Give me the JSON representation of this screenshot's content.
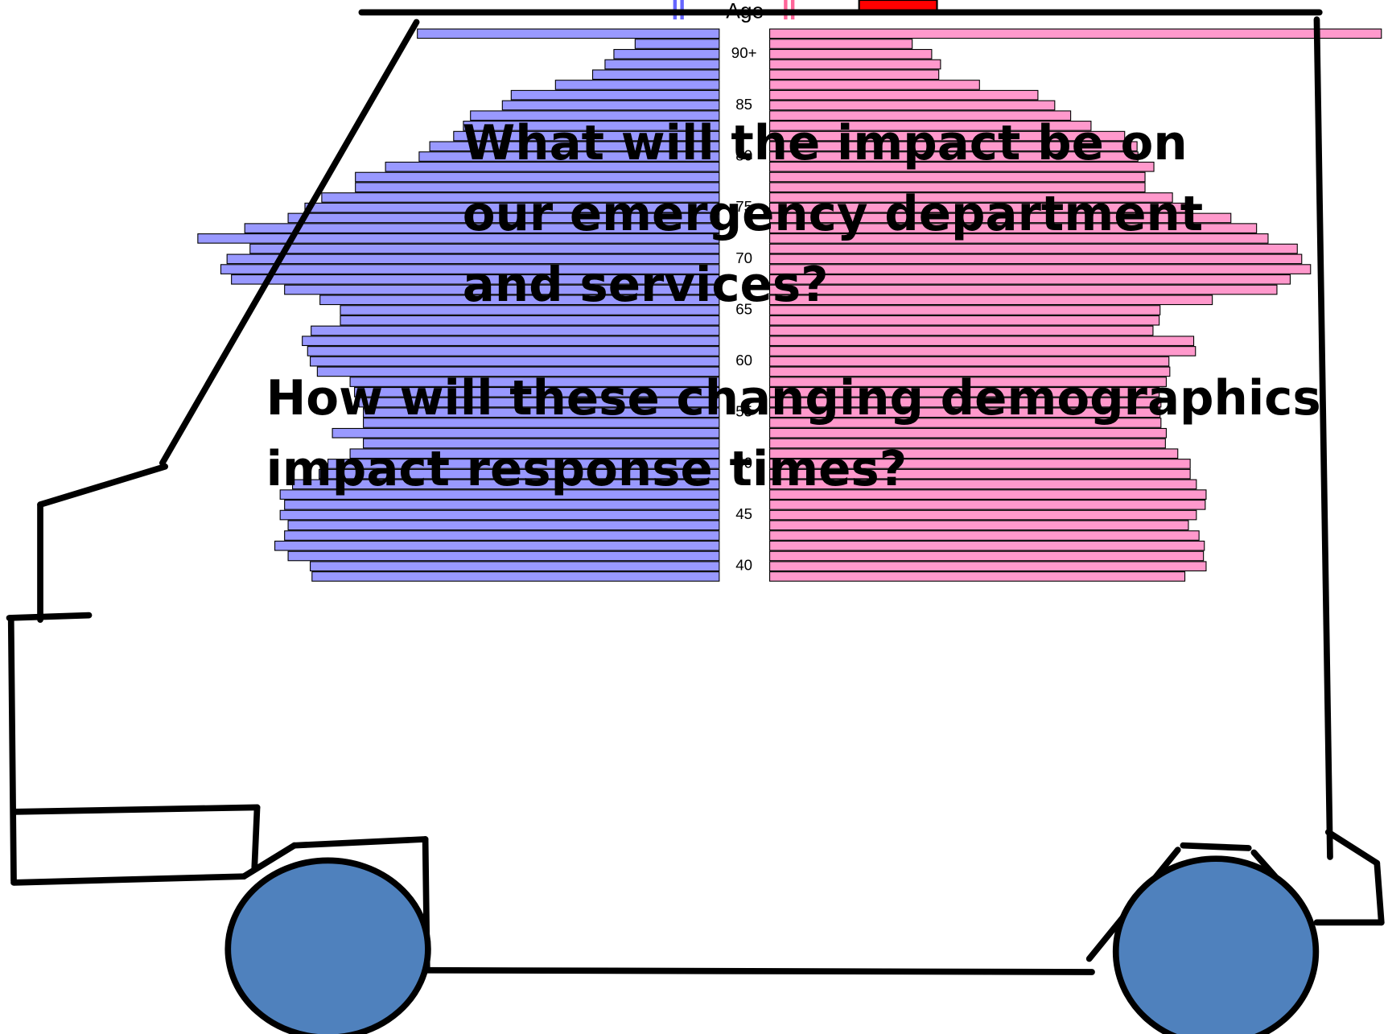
{
  "chart_data": {
    "type": "pyramid",
    "axis_title": "Age",
    "categories": [
      null,
      null,
      "90+",
      null,
      null,
      null,
      null,
      "85",
      null,
      null,
      null,
      null,
      "80",
      null,
      null,
      null,
      null,
      "75",
      null,
      null,
      null,
      null,
      "70",
      null,
      null,
      null,
      null,
      "65",
      null,
      null,
      null,
      null,
      "60",
      null,
      null,
      null,
      null,
      "55",
      null,
      null,
      null,
      null,
      "50",
      null,
      null,
      null,
      null,
      "45",
      null,
      null,
      null,
      null,
      "40",
      null
    ],
    "series": [
      {
        "color": "#9999ff",
        "values": [
          341,
          95,
          119,
          129,
          143,
          185,
          235,
          245,
          281,
          289,
          300,
          327,
          339,
          377,
          411,
          411,
          449,
          468,
          487,
          536,
          589,
          530,
          556,
          563,
          551,
          491,
          451,
          428,
          428,
          461,
          471,
          465,
          462,
          454,
          417,
          412,
          407,
          402,
          402,
          437,
          402,
          417,
          442,
          452,
          482,
          496,
          491,
          496,
          487,
          491,
          502,
          487,
          462,
          460
        ]
      },
      {
        "color": "#ff99cc",
        "values": [
          691,
          161,
          183,
          193,
          191,
          237,
          303,
          322,
          340,
          363,
          401,
          415,
          416,
          434,
          424,
          424,
          455,
          473,
          521,
          550,
          563,
          596,
          601,
          611,
          588,
          573,
          500,
          441,
          440,
          433,
          479,
          481,
          451,
          452,
          448,
          440,
          442,
          441,
          442,
          448,
          447,
          461,
          475,
          475,
          482,
          493,
          492,
          482,
          473,
          485,
          491,
          490,
          493,
          469
        ]
      }
    ]
  },
  "questions": [
    {
      "lines": [
        "What will the impact be on",
        "our emergency department",
        "and services?"
      ]
    },
    {
      "lines": [
        "How will these changing demographics",
        "impact response times?"
      ]
    }
  ]
}
